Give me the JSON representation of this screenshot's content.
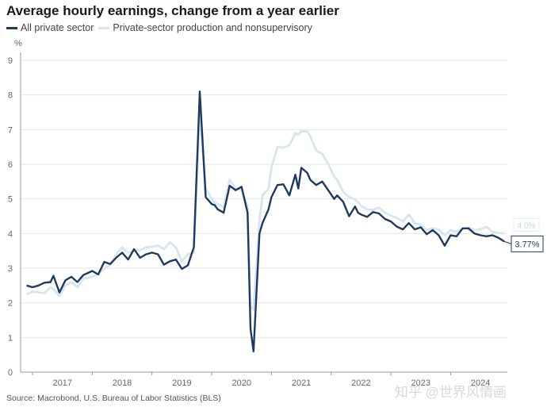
{
  "header": {
    "title": "Average hourly earnings, change from a year earlier",
    "unit": "%"
  },
  "footer": {
    "source": "Source: Macrobond, U.S. Bureau of Labor Statistics (BLS)",
    "watermark": "知乎 @世界风情画"
  },
  "chart_data": {
    "type": "line",
    "title": "Average hourly earnings, change from a year earlier",
    "ylabel": "%",
    "ylim": [
      0,
      9
    ],
    "xlim": [
      2016.8,
      2024.95
    ],
    "yticks": [
      0,
      1,
      2,
      3,
      4,
      5,
      6,
      7,
      8,
      9
    ],
    "xticks": [
      "2017",
      "2018",
      "2019",
      "2020",
      "2021",
      "2022",
      "2023",
      "2024"
    ],
    "grid": "horizontal",
    "legend": "top-left",
    "colors": {
      "all_private": "#1f3a60",
      "production": "#d7e6ee"
    },
    "end_label": {
      "all_private": "3.77%",
      "production": "4.0%"
    },
    "series": [
      {
        "name": "All private sector",
        "color": "#1f3a60",
        "x": [
          2016.9,
          2017.0,
          2017.1,
          2017.2,
          2017.3,
          2017.35,
          2017.45,
          2017.55,
          2017.65,
          2017.75,
          2017.85,
          2018.0,
          2018.1,
          2018.2,
          2018.3,
          2018.4,
          2018.5,
          2018.6,
          2018.7,
          2018.8,
          2018.9,
          2019.0,
          2019.1,
          2019.2,
          2019.3,
          2019.4,
          2019.5,
          2019.6,
          2019.7,
          2019.8,
          2019.9,
          2020.0,
          2020.05,
          2020.1,
          2020.2,
          2020.3,
          2020.4,
          2020.5,
          2020.6,
          2020.65,
          2020.7,
          2020.8,
          2020.85,
          2020.95,
          2021.0,
          2021.1,
          2021.2,
          2021.3,
          2021.4,
          2021.45,
          2021.5,
          2021.6,
          2021.65,
          2021.75,
          2021.85,
          2021.95,
          2022.05,
          2022.1,
          2022.2,
          2022.3,
          2022.4,
          2022.45,
          2022.5,
          2022.6,
          2022.7,
          2022.8,
          2022.9,
          2023.0,
          2023.1,
          2023.2,
          2023.3,
          2023.4,
          2023.5,
          2023.6,
          2023.7,
          2023.8,
          2023.9,
          2024.0,
          2024.1,
          2024.2,
          2024.3,
          2024.4,
          2024.5,
          2024.6,
          2024.7,
          2024.8,
          2024.9
        ],
        "values": [
          2.5,
          2.45,
          2.5,
          2.58,
          2.6,
          2.78,
          2.3,
          2.65,
          2.75,
          2.6,
          2.8,
          2.92,
          2.82,
          3.18,
          3.12,
          3.3,
          3.45,
          3.25,
          3.55,
          3.3,
          3.4,
          3.45,
          3.4,
          3.1,
          3.2,
          3.25,
          2.98,
          3.08,
          3.6,
          8.1,
          5.05,
          4.85,
          4.82,
          4.7,
          4.6,
          5.38,
          5.25,
          5.35,
          4.6,
          1.25,
          0.6,
          4.0,
          4.3,
          4.7,
          5.05,
          5.4,
          5.42,
          5.1,
          5.7,
          5.3,
          5.9,
          5.75,
          5.55,
          5.4,
          5.5,
          5.25,
          5.0,
          5.1,
          4.92,
          4.5,
          4.78,
          4.6,
          4.55,
          4.48,
          4.62,
          4.58,
          4.42,
          4.35,
          4.2,
          4.12,
          4.3,
          4.12,
          4.18,
          3.98,
          4.1,
          3.95,
          3.65,
          3.95,
          3.92,
          4.15,
          4.15,
          4.0,
          3.95,
          3.92,
          3.95,
          3.88,
          3.77
        ]
      },
      {
        "name": "Private-sector production and nonsupervisory",
        "color": "#d7e6ee",
        "x": [
          2016.9,
          2017.0,
          2017.1,
          2017.2,
          2017.3,
          2017.35,
          2017.45,
          2017.55,
          2017.65,
          2017.75,
          2017.85,
          2018.0,
          2018.1,
          2018.2,
          2018.3,
          2018.4,
          2018.5,
          2018.6,
          2018.7,
          2018.8,
          2018.9,
          2019.0,
          2019.1,
          2019.2,
          2019.3,
          2019.4,
          2019.5,
          2019.6,
          2019.7,
          2019.8,
          2019.9,
          2020.0,
          2020.05,
          2020.1,
          2020.2,
          2020.3,
          2020.4,
          2020.5,
          2020.6,
          2020.65,
          2020.7,
          2020.8,
          2020.85,
          2020.95,
          2021.0,
          2021.1,
          2021.2,
          2021.3,
          2021.4,
          2021.45,
          2021.5,
          2021.6,
          2021.65,
          2021.75,
          2021.85,
          2021.95,
          2022.05,
          2022.1,
          2022.2,
          2022.3,
          2022.4,
          2022.45,
          2022.5,
          2022.6,
          2022.7,
          2022.8,
          2022.9,
          2023.0,
          2023.1,
          2023.2,
          2023.3,
          2023.4,
          2023.5,
          2023.6,
          2023.7,
          2023.8,
          2023.9,
          2024.0,
          2024.1,
          2024.2,
          2024.3,
          2024.4,
          2024.5,
          2024.6,
          2024.7,
          2024.8,
          2024.9
        ],
        "values": [
          2.25,
          2.32,
          2.3,
          2.28,
          2.45,
          2.4,
          2.2,
          2.5,
          2.6,
          2.45,
          2.7,
          2.75,
          2.85,
          2.98,
          3.1,
          3.4,
          3.6,
          3.45,
          3.5,
          3.52,
          3.6,
          3.62,
          3.65,
          3.55,
          3.75,
          3.6,
          3.2,
          3.4,
          3.45,
          7.5,
          5.3,
          5.0,
          4.9,
          4.85,
          4.75,
          5.55,
          5.3,
          5.25,
          4.8,
          1.9,
          1.8,
          4.4,
          5.1,
          5.3,
          5.9,
          6.5,
          6.48,
          6.55,
          6.9,
          6.85,
          6.95,
          6.95,
          6.8,
          6.4,
          6.3,
          6.0,
          5.65,
          5.55,
          5.2,
          5.05,
          4.98,
          4.9,
          4.8,
          4.7,
          4.68,
          4.75,
          4.6,
          4.52,
          4.45,
          4.35,
          4.55,
          4.3,
          4.25,
          4.1,
          4.15,
          4.12,
          3.95,
          4.1,
          4.05,
          4.12,
          4.18,
          4.1,
          4.12,
          4.2,
          4.05,
          4.02,
          4.0
        ]
      }
    ]
  }
}
